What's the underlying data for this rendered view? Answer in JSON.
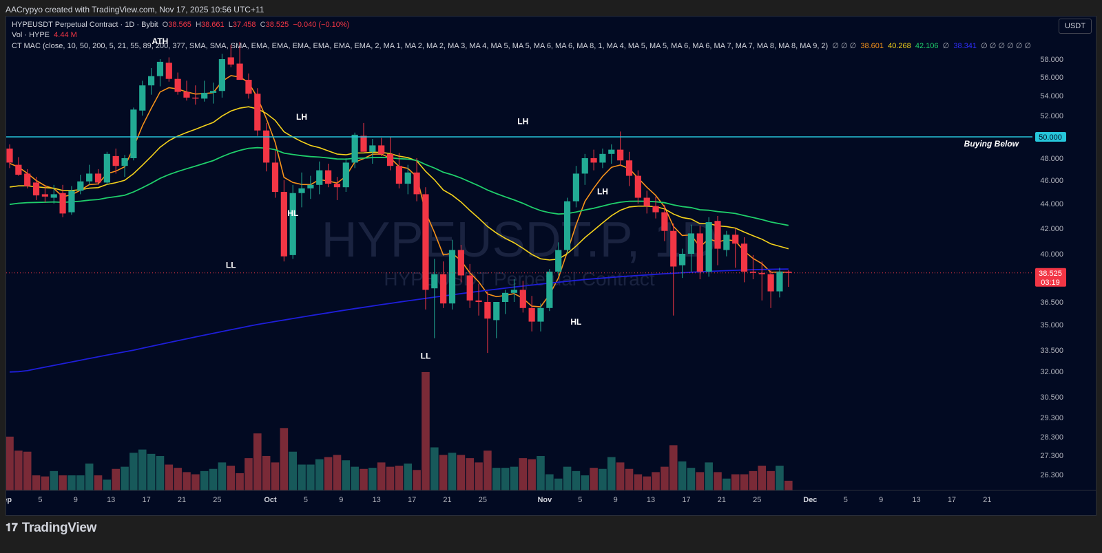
{
  "header": {
    "attribution": "AACrypyo created with TradingView.com, Nov 17, 2025 10:56 UTC+11"
  },
  "legend": {
    "line1_name": "HYPEUSDT Perpetual Contract · 1D · Bybit",
    "o_label": "O",
    "o_value": "38.565",
    "h_label": "H",
    "h_value": "38.661",
    "l_label": "L",
    "l_value": "37.458",
    "c_label": "C",
    "c_value": "38.525",
    "change": "−0.040 (−0.10%)",
    "vol_label": "Vol · HYPE",
    "vol_value": "4.44 M",
    "mac_label": "CT MAC (close, 10, 50, 200, 5, 21, 55, 89, 200, 377, SMA, SMA, SMA, EMA, EMA, EMA, EMA, EMA, EMA, 2, MA 1, MA 2, MA 2, MA 3, MA 4, MA 5, MA 5, MA 6, MA 6, MA 8, 1, MA 4, MA 5, MA 5, MA 6, MA 6, MA 7, MA 7, MA 8, MA 8, MA 9, 2)",
    "mac_empty_a": "∅ ∅ ∅",
    "ma_values": [
      "38.601",
      "40.268",
      "42.106",
      "38.341"
    ],
    "mac_empty_b": "∅ ∅ ∅ ∅ ∅ ∅"
  },
  "currency_button": "USDT",
  "price_labels": {
    "current": "38.525",
    "countdown": "03:19",
    "level": "50.000",
    "level_text": "Buying Below"
  },
  "watermark": {
    "symbol": "HYPEUSDT.P, 1D",
    "name": "HYPEUSDT Perpetual Contract"
  },
  "footer": {
    "brand": "TradingView"
  },
  "colors": {
    "up": "#22ab94",
    "down": "#f23645",
    "ma_fast": "#f7931a",
    "ma_mid": "#f5d31b",
    "ma_slow": "#1fcf6b",
    "ma_long": "#1e1eda",
    "level_line": "#26c6da"
  },
  "chart_data": {
    "type": "candlestick",
    "symbol": "HYPEUSDT",
    "interval": "1D",
    "y_ticks": [
      "58.000",
      "56.000",
      "54.000",
      "52.000",
      "48.000",
      "46.000",
      "44.000",
      "42.000",
      "40.000",
      "36.500",
      "35.000",
      "33.500",
      "32.000",
      "30.500",
      "29.300",
      "28.300",
      "27.300",
      "26.300"
    ],
    "x_ticks": [
      {
        "label": "Sep",
        "day": 0,
        "bold": true
      },
      {
        "label": "5",
        "day": 4
      },
      {
        "label": "9",
        "day": 8
      },
      {
        "label": "13",
        "day": 12
      },
      {
        "label": "17",
        "day": 16
      },
      {
        "label": "21",
        "day": 20
      },
      {
        "label": "25",
        "day": 24
      },
      {
        "label": "Oct",
        "day": 30,
        "bold": true
      },
      {
        "label": "5",
        "day": 34
      },
      {
        "label": "9",
        "day": 38
      },
      {
        "label": "13",
        "day": 42
      },
      {
        "label": "17",
        "day": 46
      },
      {
        "label": "21",
        "day": 50
      },
      {
        "label": "25",
        "day": 54
      },
      {
        "label": "Nov",
        "day": 61,
        "bold": true
      },
      {
        "label": "5",
        "day": 65
      },
      {
        "label": "9",
        "day": 69
      },
      {
        "label": "13",
        "day": 73
      },
      {
        "label": "17",
        "day": 77
      },
      {
        "label": "21",
        "day": 81
      },
      {
        "label": "25",
        "day": 85
      },
      {
        "label": "Dec",
        "day": 91,
        "bold": true
      },
      {
        "label": "5",
        "day": 95
      },
      {
        "label": "9",
        "day": 99
      },
      {
        "label": "13",
        "day": 103
      },
      {
        "label": "17",
        "day": 107
      },
      {
        "label": "21",
        "day": 111
      }
    ],
    "annotations": [
      {
        "text": "ATH",
        "day": 17,
        "price": 59.7
      },
      {
        "text": "LH",
        "day": 33,
        "price": 51.6
      },
      {
        "text": "HL",
        "day": 32,
        "price": 43.0
      },
      {
        "text": "LL",
        "day": 25,
        "price": 38.9
      },
      {
        "text": "LH",
        "day": 58,
        "price": 51.2
      },
      {
        "text": "LL",
        "day": 47,
        "price": 32.9
      },
      {
        "text": "HL",
        "day": 64,
        "price": 35.0
      },
      {
        "text": "LH",
        "day": 67,
        "price": 44.8
      }
    ],
    "level": 50.0,
    "candles": [
      [
        48.9,
        49.3,
        47.1,
        47.6,
        5.0
      ],
      [
        47.4,
        48.1,
        46.4,
        46.5,
        3.7
      ],
      [
        46.6,
        47.0,
        45.3,
        45.5,
        3.6
      ],
      [
        45.8,
        46.3,
        44.3,
        44.7,
        1.4
      ],
      [
        44.8,
        45.5,
        44.1,
        44.6,
        1.3
      ],
      [
        44.5,
        45.6,
        44.0,
        44.8,
        1.8
      ],
      [
        44.9,
        45.6,
        42.9,
        43.2,
        1.4
      ],
      [
        43.3,
        45.5,
        43.1,
        45.1,
        1.4
      ],
      [
        45.1,
        46.5,
        44.8,
        45.9,
        1.4
      ],
      [
        45.9,
        47.4,
        45.6,
        46.6,
        2.5
      ],
      [
        46.6,
        47.0,
        45.6,
        45.8,
        1.4
      ],
      [
        45.8,
        48.6,
        45.6,
        48.4,
        1.0
      ],
      [
        48.2,
        48.9,
        46.6,
        47.3,
        2.0
      ],
      [
        47.3,
        48.3,
        46.3,
        48.0,
        2.2
      ],
      [
        48.0,
        52.8,
        47.8,
        52.6,
        3.5
      ],
      [
        52.5,
        55.6,
        52.0,
        55.1,
        3.8
      ],
      [
        55.1,
        57.0,
        54.1,
        56.1,
        3.4
      ],
      [
        56.1,
        58.0,
        55.0,
        57.7,
        3.2
      ],
      [
        57.6,
        58.2,
        55.5,
        55.8,
        2.4
      ],
      [
        55.8,
        56.5,
        54.1,
        54.4,
        2.1
      ],
      [
        54.4,
        55.6,
        53.5,
        53.8,
        1.7
      ],
      [
        53.8,
        55.1,
        53.1,
        53.7,
        1.5
      ],
      [
        53.7,
        55.6,
        53.4,
        54.3,
        1.8
      ],
      [
        54.3,
        55.4,
        53.2,
        54.5,
        2.0
      ],
      [
        54.5,
        58.6,
        53.8,
        58.0,
        2.6
      ],
      [
        58.2,
        59.6,
        57.1,
        57.4,
        2.3
      ],
      [
        57.5,
        59.9,
        55.9,
        55.7,
        1.6
      ],
      [
        55.7,
        56.4,
        53.7,
        54.2,
        3.0
      ],
      [
        54.2,
        54.8,
        50.1,
        50.6,
        5.3
      ],
      [
        50.6,
        51.3,
        46.8,
        47.6,
        3.2
      ],
      [
        47.6,
        48.7,
        44.5,
        45.0,
        2.6
      ],
      [
        45.0,
        46.0,
        39.4,
        39.8,
        5.8
      ],
      [
        39.9,
        45.6,
        39.6,
        44.9,
        3.6
      ],
      [
        44.9,
        46.7,
        43.7,
        45.3,
        2.4
      ],
      [
        45.3,
        46.4,
        44.4,
        45.6,
        2.4
      ],
      [
        45.6,
        47.7,
        44.8,
        46.9,
        2.9
      ],
      [
        46.9,
        47.5,
        45.4,
        45.7,
        3.1
      ],
      [
        45.7,
        46.3,
        44.3,
        45.4,
        3.3
      ],
      [
        45.4,
        48.0,
        45.0,
        47.6,
        2.8
      ],
      [
        47.6,
        50.4,
        47.1,
        50.2,
        2.2
      ],
      [
        50.1,
        51.3,
        48.7,
        48.6,
        2.0
      ],
      [
        48.6,
        49.8,
        47.5,
        49.2,
        2.1
      ],
      [
        49.2,
        49.9,
        48.2,
        48.4,
        2.6
      ],
      [
        48.4,
        50.0,
        46.9,
        47.3,
        2.2
      ],
      [
        47.3,
        48.5,
        45.3,
        45.7,
        2.3
      ],
      [
        45.7,
        47.4,
        44.8,
        46.7,
        2.5
      ],
      [
        46.7,
        48.0,
        44.2,
        44.8,
        1.9
      ],
      [
        44.8,
        45.4,
        36.0,
        37.3,
        11.0
      ],
      [
        37.4,
        39.6,
        34.2,
        38.4,
        4.0
      ],
      [
        38.4,
        39.4,
        36.1,
        36.4,
        3.3
      ],
      [
        36.4,
        41.1,
        36.0,
        40.3,
        3.5
      ],
      [
        40.3,
        40.7,
        37.8,
        38.3,
        3.3
      ],
      [
        38.3,
        39.2,
        36.1,
        36.6,
        3.0
      ],
      [
        36.6,
        37.7,
        35.6,
        36.5,
        2.6
      ],
      [
        36.5,
        37.2,
        33.3,
        35.4,
        3.7
      ],
      [
        35.3,
        36.3,
        34.2,
        36.5,
        2.1
      ],
      [
        36.5,
        37.3,
        35.7,
        37.1,
        2.1
      ],
      [
        37.1,
        38.0,
        36.5,
        37.3,
        2.2
      ],
      [
        37.3,
        37.9,
        35.8,
        36.1,
        3.0
      ],
      [
        36.1,
        36.9,
        34.6,
        35.2,
        2.9
      ],
      [
        35.2,
        36.4,
        34.6,
        36.1,
        3.2
      ],
      [
        36.1,
        38.8,
        35.9,
        38.6,
        1.5
      ],
      [
        38.6,
        40.9,
        38.3,
        40.3,
        1.1
      ],
      [
        40.3,
        44.5,
        40.0,
        44.2,
        2.2
      ],
      [
        44.2,
        47.3,
        43.7,
        46.6,
        1.8
      ],
      [
        46.6,
        48.4,
        45.6,
        48.0,
        1.4
      ],
      [
        48.0,
        48.8,
        46.9,
        47.6,
        2.1
      ],
      [
        47.6,
        48.9,
        47.1,
        48.4,
        2.0
      ],
      [
        48.4,
        49.3,
        47.5,
        48.8,
        3.1
      ],
      [
        48.8,
        50.5,
        47.3,
        47.8,
        2.6
      ],
      [
        47.8,
        48.6,
        45.5,
        46.4,
        2.0
      ],
      [
        46.4,
        46.9,
        44.0,
        44.5,
        1.5
      ],
      [
        44.5,
        45.1,
        43.2,
        43.8,
        1.3
      ],
      [
        43.8,
        44.6,
        42.8,
        43.3,
        1.7
      ],
      [
        43.3,
        43.9,
        41.0,
        41.8,
        2.2
      ],
      [
        41.8,
        42.4,
        35.6,
        39.0,
        4.2
      ],
      [
        39.1,
        40.4,
        38.1,
        40.0,
        2.7
      ],
      [
        40.0,
        42.3,
        38.6,
        41.6,
        2.1
      ],
      [
        41.6,
        42.2,
        38.0,
        38.6,
        1.7
      ],
      [
        38.6,
        42.9,
        38.2,
        42.5,
        2.6
      ],
      [
        42.6,
        43.0,
        39.1,
        40.4,
        1.7
      ],
      [
        40.3,
        41.8,
        39.8,
        41.5,
        1.1
      ],
      [
        41.5,
        42.0,
        38.9,
        40.8,
        1.5
      ],
      [
        40.8,
        41.3,
        37.8,
        38.6,
        1.5
      ],
      [
        38.6,
        39.9,
        38.0,
        38.5,
        1.8
      ],
      [
        38.5,
        39.4,
        36.6,
        38.4,
        2.3
      ],
      [
        38.4,
        38.7,
        36.1,
        37.2,
        1.8
      ],
      [
        37.2,
        38.9,
        36.8,
        38.6,
        2.3
      ],
      [
        38.6,
        38.7,
        37.5,
        38.5,
        0.9
      ]
    ]
  }
}
